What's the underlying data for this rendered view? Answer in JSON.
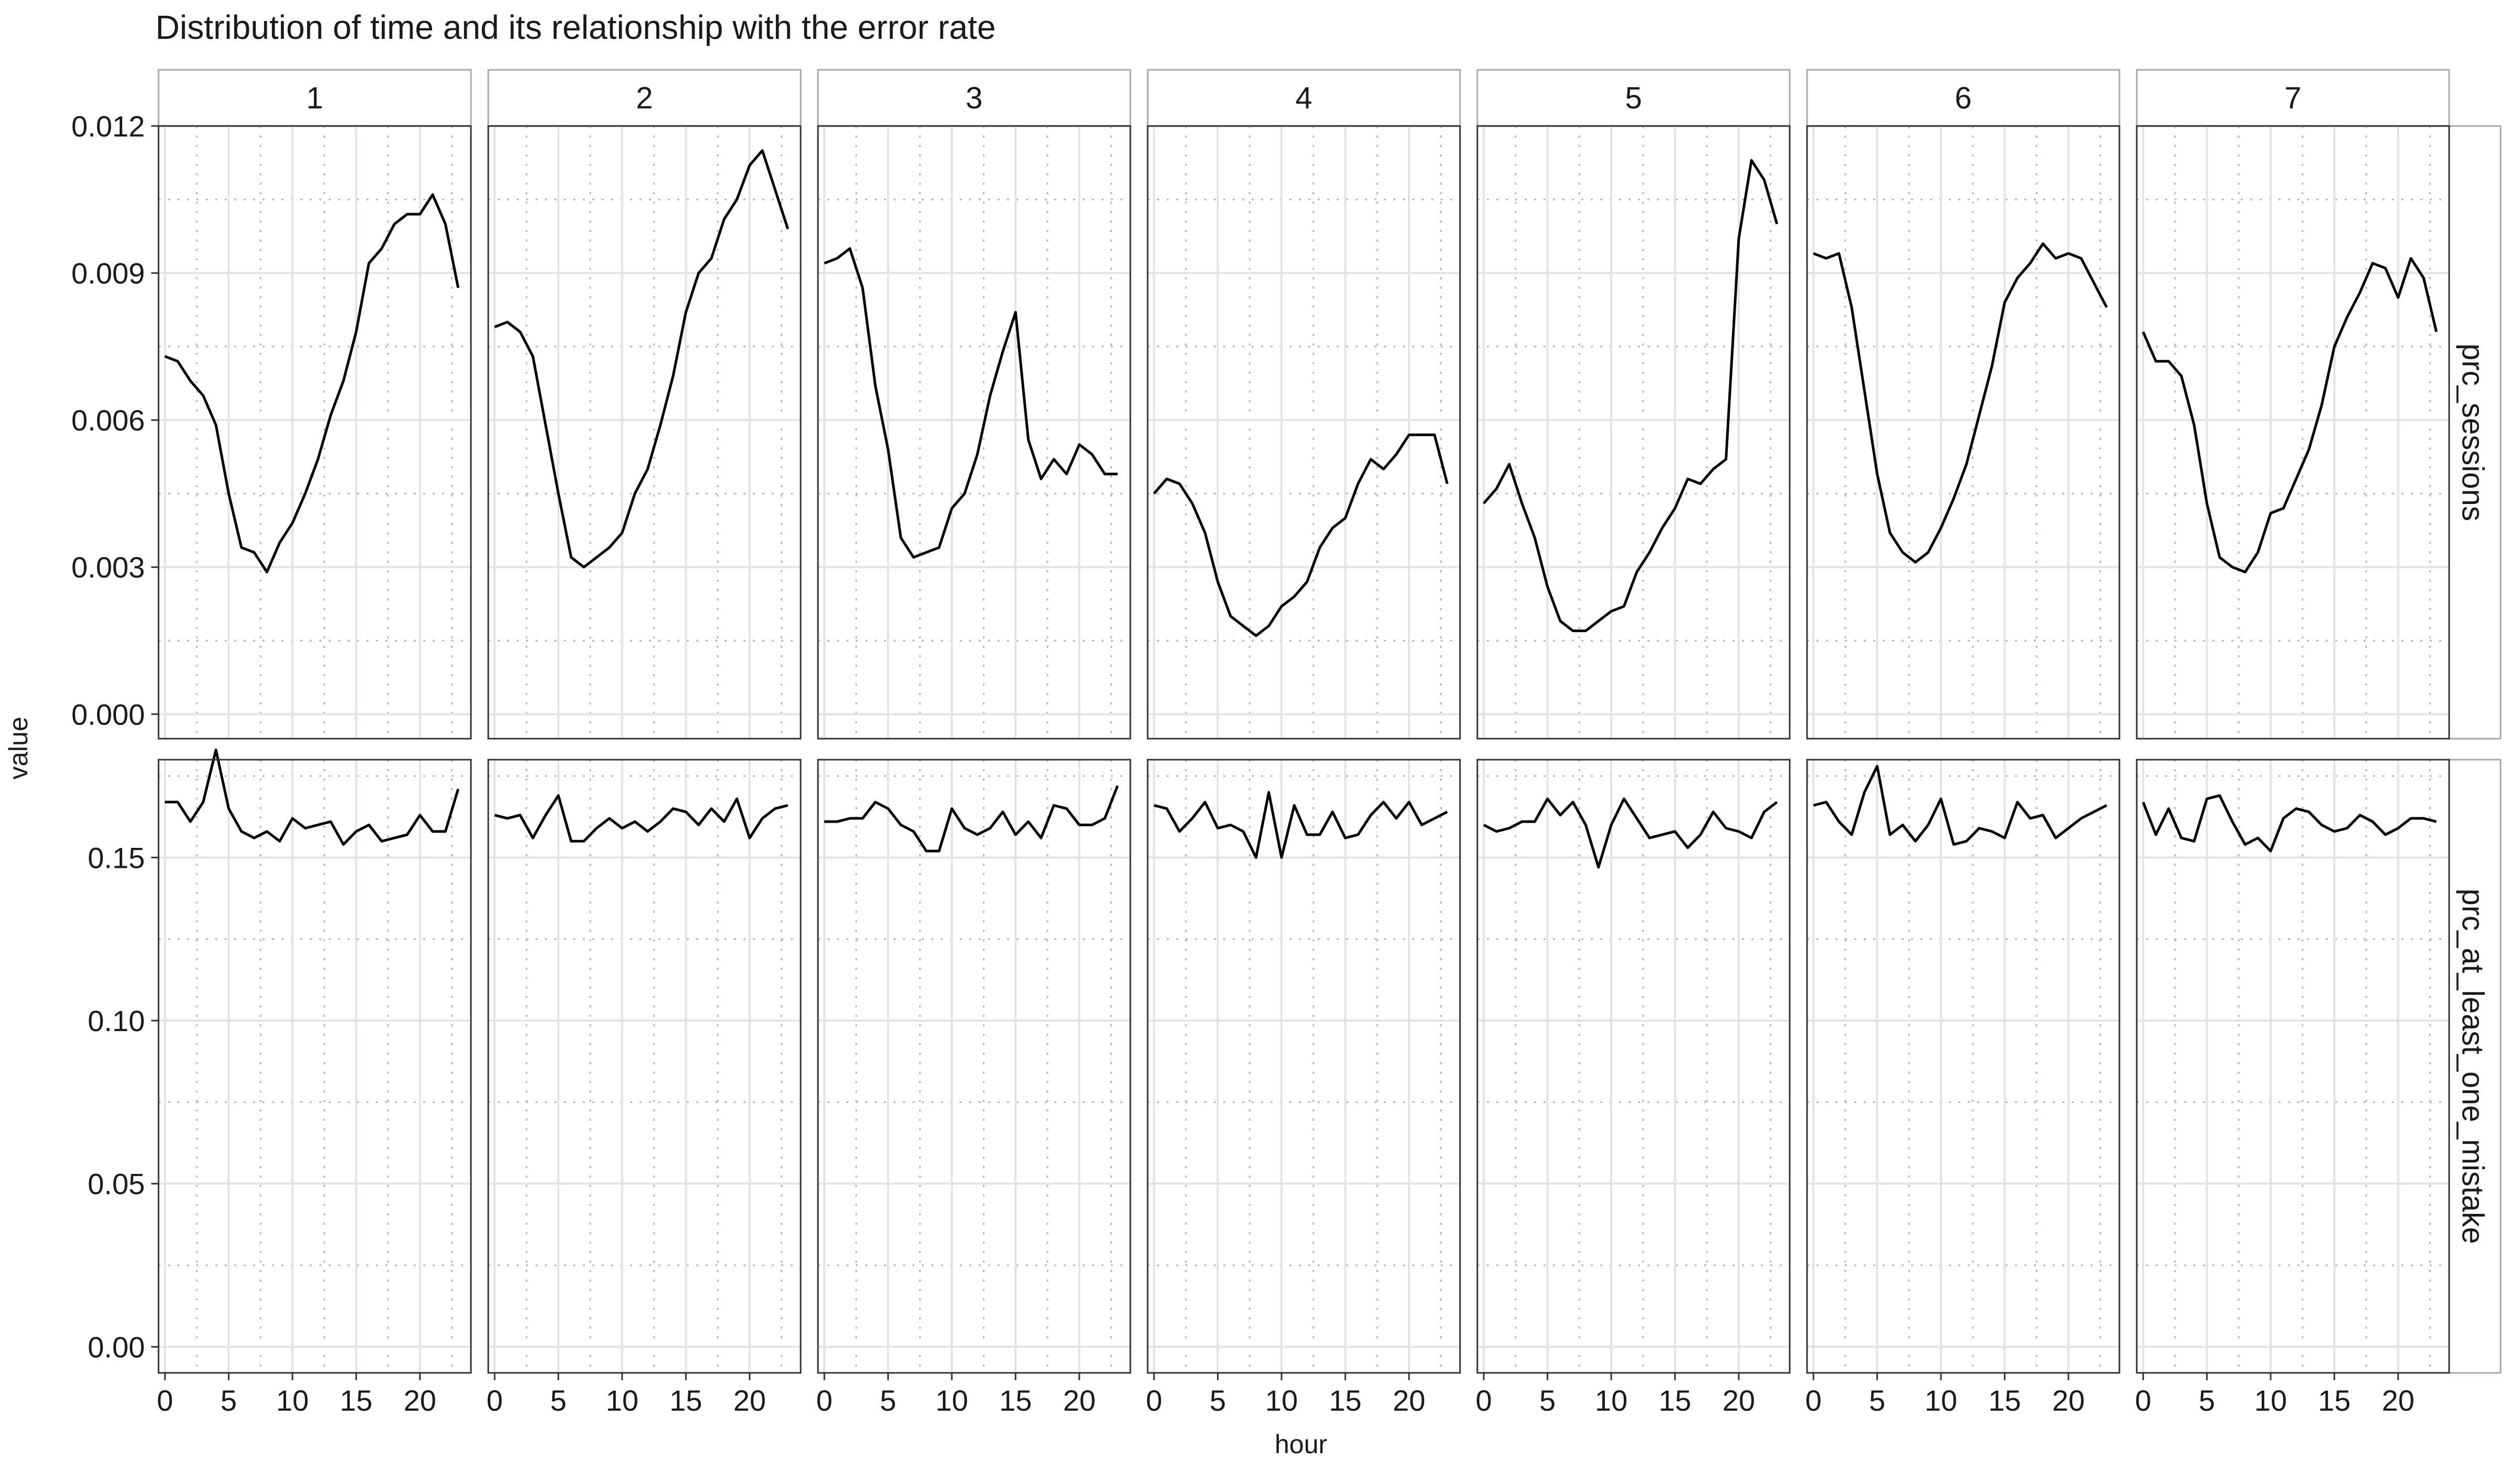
{
  "chart_data": {
    "type": "line",
    "title": "Distribution of time and its relationship with the error rate",
    "xlabel": "hour",
    "ylabel": "value",
    "facet_columns": [
      "1",
      "2",
      "3",
      "4",
      "5",
      "6",
      "7"
    ],
    "facet_rows": [
      "prc_sessions",
      "prc_at_least_one_mistake"
    ],
    "x": [
      0,
      1,
      2,
      3,
      4,
      5,
      6,
      7,
      8,
      9,
      10,
      11,
      12,
      13,
      14,
      15,
      16,
      17,
      18,
      19,
      20,
      21,
      22,
      23
    ],
    "xlim": [
      -0.5,
      24
    ],
    "xticks": [
      0,
      5,
      10,
      15,
      20
    ],
    "xtick_labels": [
      "0",
      "5",
      "10",
      "15",
      "20"
    ],
    "rows": [
      {
        "name": "prc_sessions",
        "ylim": [
          -0.0005,
          0.012
        ],
        "yticks": [
          0.0,
          0.003,
          0.006,
          0.009,
          0.012
        ],
        "ytick_labels": [
          "0.000",
          "0.003",
          "0.006",
          "0.009",
          "0.012"
        ],
        "yminor": [
          0.0015,
          0.0045,
          0.0075,
          0.0105
        ],
        "series": [
          {
            "facet": "1",
            "values": [
              0.0073,
              0.0072,
              0.0068,
              0.0065,
              0.0059,
              0.0045,
              0.0034,
              0.0033,
              0.0029,
              0.0035,
              0.0039,
              0.0045,
              0.0052,
              0.0061,
              0.0068,
              0.0078,
              0.0092,
              0.0095,
              0.01,
              0.0102,
              0.0102,
              0.0106,
              0.01,
              0.0087
            ]
          },
          {
            "facet": "2",
            "values": [
              0.0079,
              0.008,
              0.0078,
              0.0073,
              0.0059,
              0.0045,
              0.0032,
              0.003,
              0.0032,
              0.0034,
              0.0037,
              0.0045,
              0.005,
              0.0059,
              0.0069,
              0.0082,
              0.009,
              0.0093,
              0.0101,
              0.0105,
              0.0112,
              0.0115,
              0.0107,
              0.0099
            ]
          },
          {
            "facet": "3",
            "values": [
              0.0092,
              0.0093,
              0.0095,
              0.0087,
              0.0067,
              0.0054,
              0.0036,
              0.0032,
              0.0033,
              0.0034,
              0.0042,
              0.0045,
              0.0053,
              0.0065,
              0.0074,
              0.0082,
              0.0056,
              0.0048,
              0.0052,
              0.0049,
              0.0055,
              0.0053,
              0.0049,
              0.0049
            ]
          },
          {
            "facet": "4",
            "values": [
              0.0045,
              0.0048,
              0.0047,
              0.0043,
              0.0037,
              0.0027,
              0.002,
              0.0018,
              0.0016,
              0.0018,
              0.0022,
              0.0024,
              0.0027,
              0.0034,
              0.0038,
              0.004,
              0.0047,
              0.0052,
              0.005,
              0.0053,
              0.0057,
              0.0057,
              0.0057,
              0.0047
            ]
          },
          {
            "facet": "5",
            "values": [
              0.0043,
              0.0046,
              0.0051,
              0.0043,
              0.0036,
              0.0026,
              0.0019,
              0.0017,
              0.0017,
              0.0019,
              0.0021,
              0.0022,
              0.0029,
              0.0033,
              0.0038,
              0.0042,
              0.0048,
              0.0047,
              0.005,
              0.0052,
              0.0097,
              0.0113,
              0.0109,
              0.01
            ]
          },
          {
            "facet": "6",
            "values": [
              0.0094,
              0.0093,
              0.0094,
              0.0083,
              0.0066,
              0.0049,
              0.0037,
              0.0033,
              0.0031,
              0.0033,
              0.0038,
              0.0044,
              0.0051,
              0.0061,
              0.0071,
              0.0084,
              0.0089,
              0.0092,
              0.0096,
              0.0093,
              0.0094,
              0.0093,
              0.0088,
              0.0083
            ]
          },
          {
            "facet": "7",
            "values": [
              0.0078,
              0.0072,
              0.0072,
              0.0069,
              0.0059,
              0.0043,
              0.0032,
              0.003,
              0.0029,
              0.0033,
              0.0041,
              0.0042,
              0.0048,
              0.0054,
              0.0063,
              0.0075,
              0.0081,
              0.0086,
              0.0092,
              0.0091,
              0.0085,
              0.0093,
              0.0089,
              0.0078
            ]
          }
        ]
      },
      {
        "name": "prc_at_least_one_mistake",
        "ylim": [
          -0.008,
          0.18
        ],
        "yticks": [
          0.0,
          0.05,
          0.1,
          0.15
        ],
        "ytick_labels": [
          "0.00",
          "0.05",
          "0.10",
          "0.15"
        ],
        "yminor": [
          0.025,
          0.075,
          0.125,
          0.175
        ],
        "series": [
          {
            "facet": "1",
            "values": [
              0.167,
              0.167,
              0.161,
              0.167,
              0.183,
              0.165,
              0.158,
              0.156,
              0.158,
              0.155,
              0.162,
              0.159,
              0.16,
              0.161,
              0.154,
              0.158,
              0.16,
              0.155,
              0.156,
              0.157,
              0.163,
              0.158,
              0.158,
              0.171
            ]
          },
          {
            "facet": "2",
            "values": [
              0.163,
              0.162,
              0.163,
              0.156,
              0.163,
              0.169,
              0.155,
              0.155,
              0.159,
              0.162,
              0.159,
              0.161,
              0.158,
              0.161,
              0.165,
              0.164,
              0.16,
              0.165,
              0.161,
              0.168,
              0.156,
              0.162,
              0.165,
              0.166
            ]
          },
          {
            "facet": "3",
            "values": [
              0.161,
              0.161,
              0.162,
              0.162,
              0.167,
              0.165,
              0.16,
              0.158,
              0.152,
              0.152,
              0.165,
              0.159,
              0.157,
              0.159,
              0.164,
              0.157,
              0.161,
              0.156,
              0.166,
              0.165,
              0.16,
              0.16,
              0.162,
              0.172
            ]
          },
          {
            "facet": "4",
            "values": [
              0.166,
              0.165,
              0.158,
              0.162,
              0.167,
              0.159,
              0.16,
              0.158,
              0.15,
              0.17,
              0.15,
              0.166,
              0.157,
              0.157,
              0.164,
              0.156,
              0.157,
              0.163,
              0.167,
              0.162,
              0.167,
              0.16,
              0.162,
              0.164
            ]
          },
          {
            "facet": "5",
            "values": [
              0.16,
              0.158,
              0.159,
              0.161,
              0.161,
              0.168,
              0.163,
              0.167,
              0.16,
              0.147,
              0.16,
              0.168,
              0.162,
              0.156,
              0.157,
              0.158,
              0.153,
              0.157,
              0.164,
              0.159,
              0.158,
              0.156,
              0.164,
              0.167
            ]
          },
          {
            "facet": "6",
            "values": [
              0.166,
              0.167,
              0.161,
              0.157,
              0.17,
              0.178,
              0.157,
              0.16,
              0.155,
              0.16,
              0.168,
              0.154,
              0.155,
              0.159,
              0.158,
              0.156,
              0.167,
              0.162,
              0.163,
              0.156,
              0.159,
              0.162,
              0.164,
              0.166
            ]
          },
          {
            "facet": "7",
            "values": [
              0.167,
              0.157,
              0.165,
              0.156,
              0.155,
              0.168,
              0.169,
              0.161,
              0.154,
              0.156,
              0.152,
              0.162,
              0.165,
              0.164,
              0.16,
              0.158,
              0.159,
              0.163,
              0.161,
              0.157,
              0.159,
              0.162,
              0.162,
              0.161
            ]
          }
        ]
      }
    ],
    "grid": true
  }
}
